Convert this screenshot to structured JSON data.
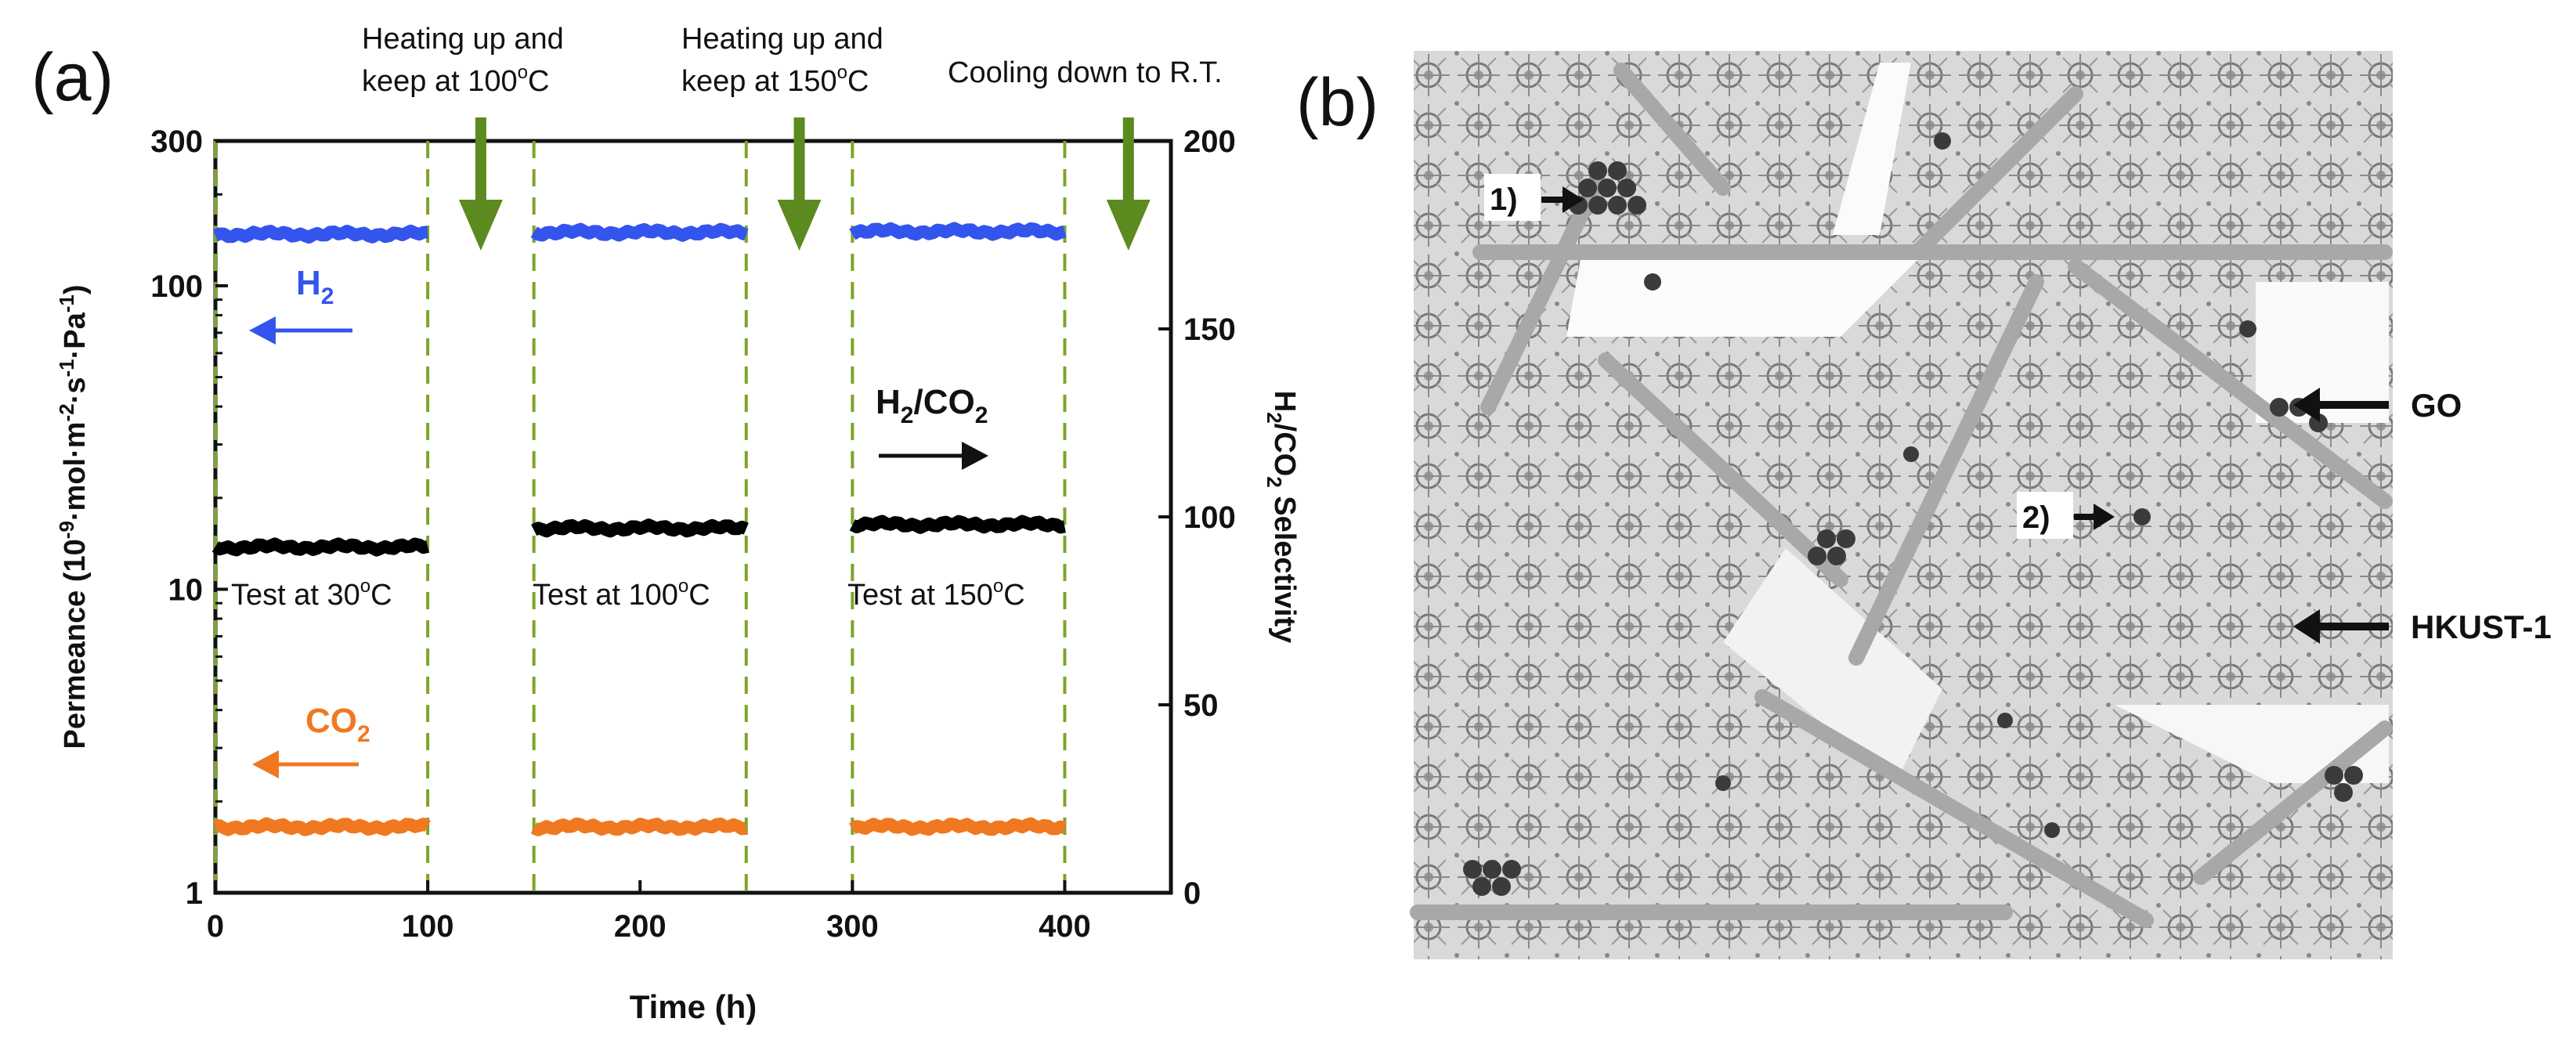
{
  "panel_a": {
    "label": "(a)",
    "annotations": {
      "heat100": [
        "Heating up and",
        "keep at 100",
        "o",
        "C"
      ],
      "heat150": [
        "Heating up and",
        "keep at 150",
        "o",
        "C"
      ],
      "cool": "Cooling down to R.T."
    },
    "series_labels": {
      "h2": [
        "H",
        "2"
      ],
      "co2": [
        "CO",
        "2"
      ],
      "sel": [
        "H",
        "2",
        "/CO",
        "2"
      ]
    },
    "test_labels": [
      [
        "Test at 30",
        "o",
        "C"
      ],
      [
        "Test at 100",
        "o",
        "C"
      ],
      [
        "Test at 150",
        "o",
        "C"
      ]
    ]
  },
  "panel_b": {
    "label": "(b)",
    "callouts": [
      "1)",
      "2)",
      "GO",
      "HKUST-1"
    ]
  },
  "chart_data": {
    "type": "line",
    "title": "",
    "xlabel": "Time (h)",
    "ylabel_left": [
      "Permeance (10",
      "-9",
      "·mol·m",
      "-2",
      "·s",
      "-1",
      "·Pa",
      "-1",
      ")"
    ],
    "ylabel_right": [
      "H",
      "2",
      "/CO",
      "2",
      " Selectivity"
    ],
    "xlim": [
      0,
      450
    ],
    "ylim_left": [
      1,
      300
    ],
    "yscale_left": "log",
    "ylim_right": [
      0,
      200
    ],
    "xticks": [
      0,
      100,
      200,
      300,
      400
    ],
    "yticks_left": [
      1,
      10,
      100,
      300
    ],
    "yticks_right": [
      0,
      50,
      100,
      150,
      200
    ],
    "grid": false,
    "segments": [
      [
        0,
        100
      ],
      [
        150,
        250
      ],
      [
        300,
        400
      ]
    ],
    "series": [
      {
        "name": "H2",
        "axis": "left",
        "color": "#3355ee",
        "values": [
          148,
          150,
          151
        ]
      },
      {
        "name": "CO2",
        "axis": "left",
        "color": "#f07820",
        "values": [
          1.65,
          1.65,
          1.65
        ]
      },
      {
        "name": "H2/CO2",
        "axis": "right",
        "color": "#000000",
        "values": [
          92,
          97,
          98
        ]
      }
    ],
    "events": [
      {
        "x": 125,
        "label": "Heating up and keep at 100°C"
      },
      {
        "x": 275,
        "label": "Heating up and keep at 150°C"
      },
      {
        "x": 430,
        "label": "Cooling down to R.T."
      }
    ],
    "colors": {
      "h2": "#3355ee",
      "co2": "#f07820",
      "sel": "#000000",
      "dash": "#7aa62a",
      "arrow": "#5c8a1e"
    }
  }
}
